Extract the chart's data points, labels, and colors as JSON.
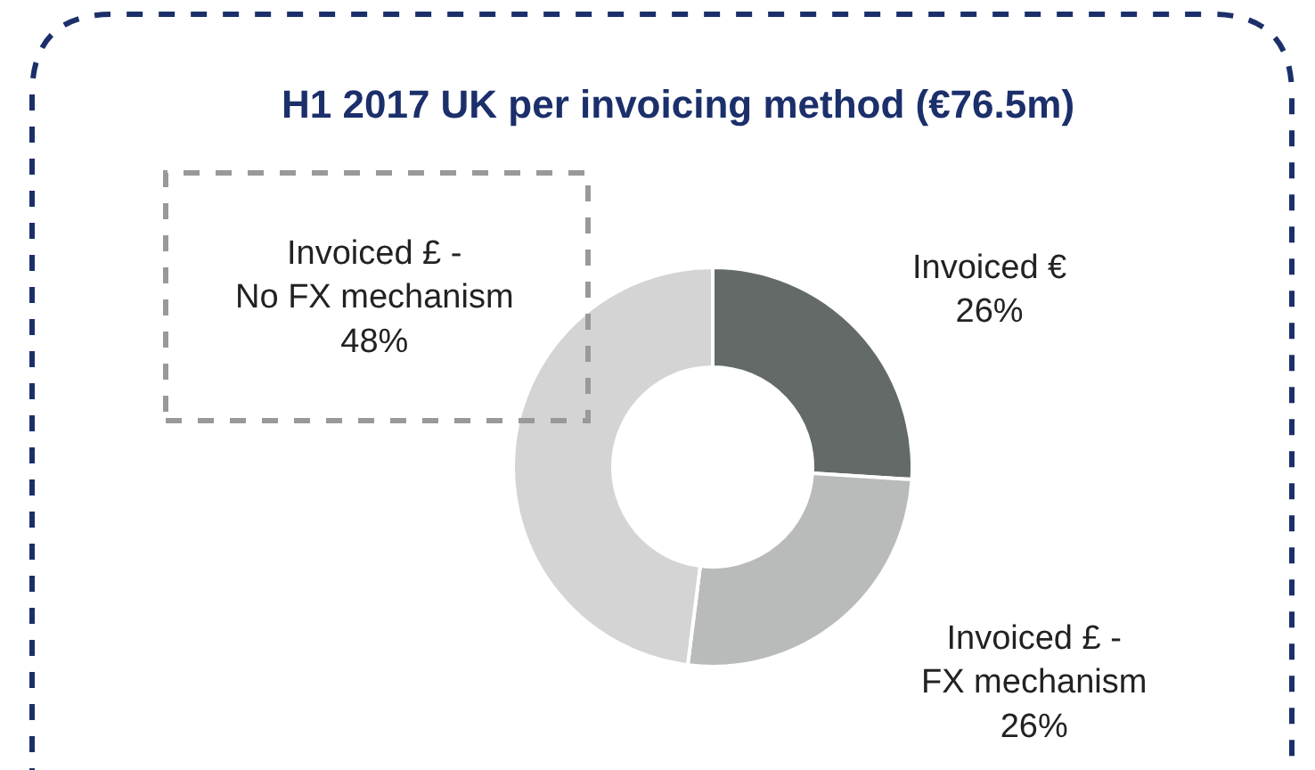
{
  "chart_data": {
    "type": "donut",
    "title": "H1 2017 UK per invoicing method (€76.5m)",
    "categories": [
      "Invoiced €",
      "Invoiced £ -\nFX mechanism",
      "Invoiced £ -\nNo FX mechanism"
    ],
    "values": [
      26,
      26,
      48
    ],
    "value_labels": [
      "26%",
      "26%",
      "48%"
    ],
    "colors": [
      "#646a68",
      "#b9bbbb",
      "#d4d4d4"
    ],
    "legend": false
  }
}
